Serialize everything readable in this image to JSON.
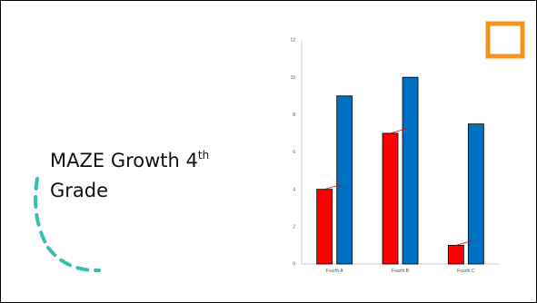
{
  "slide": {
    "title_main": "MAZE Growth 4",
    "title_sup": "th",
    "title_line2": "Grade",
    "accent_color": "#f7941d",
    "arc_color": "#36bfb1"
  },
  "chart_data": {
    "type": "bar",
    "categories": [
      "Fourth A",
      "Fourth B",
      "Fourth C"
    ],
    "series": [
      {
        "values": [
          4,
          7,
          1
        ],
        "color": "#ff0000"
      },
      {
        "values": [
          9,
          10,
          7.5
        ],
        "color": "#0070c0"
      }
    ],
    "ylim": [
      0,
      12
    ],
    "yticks": [
      0,
      2,
      4,
      6,
      8,
      10,
      12
    ],
    "grid": false,
    "connector_color": "#ff0000"
  }
}
